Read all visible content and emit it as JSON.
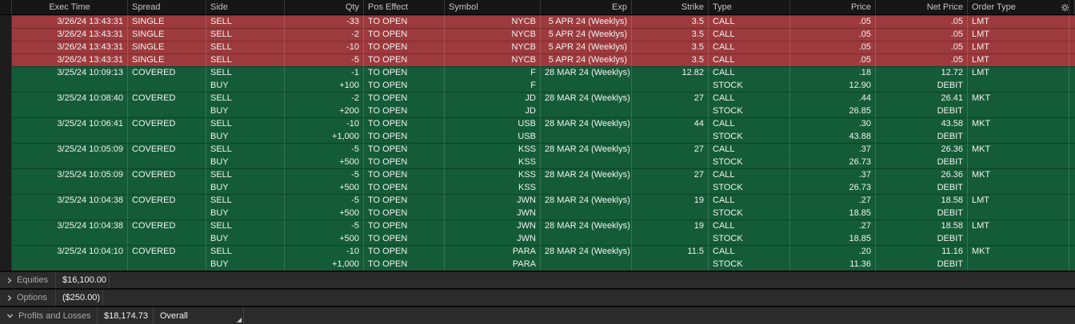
{
  "colors": {
    "sell_row": "#9d3a3d",
    "sell_row_divider": "#7a2b2e",
    "covered_row": "#145c37",
    "covered_row_divider": "#0b4226"
  },
  "icons": {
    "settings": "gear-icon",
    "collapsed": "chevron-right-icon",
    "expanded": "chevron-down-icon",
    "resize": "corner-resize-handle"
  },
  "table": {
    "columns": [
      {
        "key": "exec_time",
        "label": "Exec Time"
      },
      {
        "key": "spread",
        "label": "Spread"
      },
      {
        "key": "side",
        "label": "Side"
      },
      {
        "key": "qty",
        "label": "Qty"
      },
      {
        "key": "pos_effect",
        "label": "Pos Effect"
      },
      {
        "key": "symbol",
        "label": "Symbol"
      },
      {
        "key": "exp",
        "label": "Exp"
      },
      {
        "key": "strike",
        "label": "Strike"
      },
      {
        "key": "type",
        "label": "Type"
      },
      {
        "key": "price",
        "label": "Price"
      },
      {
        "key": "net_price",
        "label": "Net Price"
      },
      {
        "key": "order_type",
        "label": "Order Type"
      }
    ],
    "orders": [
      {
        "tone": "red",
        "lines": [
          {
            "exec_time": "3/26/24 13:43:31",
            "spread": "SINGLE",
            "side": "SELL",
            "qty": "-33",
            "pos_effect": "TO OPEN",
            "symbol": "NYCB",
            "exp": "5 APR 24 (Weeklys)",
            "strike": "3.5",
            "type": "CALL",
            "price": ".05",
            "net_price": ".05",
            "order_type": "LMT"
          }
        ]
      },
      {
        "tone": "red",
        "lines": [
          {
            "exec_time": "3/26/24 13:43:31",
            "spread": "SINGLE",
            "side": "SELL",
            "qty": "-2",
            "pos_effect": "TO OPEN",
            "symbol": "NYCB",
            "exp": "5 APR 24 (Weeklys)",
            "strike": "3.5",
            "type": "CALL",
            "price": ".05",
            "net_price": ".05",
            "order_type": "LMT"
          }
        ]
      },
      {
        "tone": "red",
        "lines": [
          {
            "exec_time": "3/26/24 13:43:31",
            "spread": "SINGLE",
            "side": "SELL",
            "qty": "-10",
            "pos_effect": "TO OPEN",
            "symbol": "NYCB",
            "exp": "5 APR 24 (Weeklys)",
            "strike": "3.5",
            "type": "CALL",
            "price": ".05",
            "net_price": ".05",
            "order_type": "LMT"
          }
        ]
      },
      {
        "tone": "red",
        "lines": [
          {
            "exec_time": "3/26/24 13:43:31",
            "spread": "SINGLE",
            "side": "SELL",
            "qty": "-5",
            "pos_effect": "TO OPEN",
            "symbol": "NYCB",
            "exp": "5 APR 24 (Weeklys)",
            "strike": "3.5",
            "type": "CALL",
            "price": ".05",
            "net_price": ".05",
            "order_type": "LMT"
          }
        ]
      },
      {
        "tone": "green",
        "lines": [
          {
            "exec_time": "3/25/24 10:09:13",
            "spread": "COVERED",
            "side": "SELL",
            "qty": "-1",
            "pos_effect": "TO OPEN",
            "symbol": "F",
            "exp": "28 MAR 24 (Weeklys)",
            "strike": "12.82",
            "type": "CALL",
            "price": ".18",
            "net_price": "12.72",
            "order_type": "LMT"
          },
          {
            "exec_time": "",
            "spread": "",
            "side": "BUY",
            "qty": "+100",
            "pos_effect": "TO OPEN",
            "symbol": "F",
            "exp": "",
            "strike": "",
            "type": "STOCK",
            "price": "12.90",
            "net_price": "DEBIT",
            "order_type": ""
          }
        ]
      },
      {
        "tone": "green",
        "lines": [
          {
            "exec_time": "3/25/24 10:08:40",
            "spread": "COVERED",
            "side": "SELL",
            "qty": "-2",
            "pos_effect": "TO OPEN",
            "symbol": "JD",
            "exp": "28 MAR 24 (Weeklys)",
            "strike": "27",
            "type": "CALL",
            "price": ".44",
            "net_price": "26.41",
            "order_type": "MKT"
          },
          {
            "exec_time": "",
            "spread": "",
            "side": "BUY",
            "qty": "+200",
            "pos_effect": "TO OPEN",
            "symbol": "JD",
            "exp": "",
            "strike": "",
            "type": "STOCK",
            "price": "26.85",
            "net_price": "DEBIT",
            "order_type": ""
          }
        ]
      },
      {
        "tone": "green",
        "lines": [
          {
            "exec_time": "3/25/24 10:06:41",
            "spread": "COVERED",
            "side": "SELL",
            "qty": "-10",
            "pos_effect": "TO OPEN",
            "symbol": "USB",
            "exp": "28 MAR 24 (Weeklys)",
            "strike": "44",
            "type": "CALL",
            "price": ".30",
            "net_price": "43.58",
            "order_type": "MKT"
          },
          {
            "exec_time": "",
            "spread": "",
            "side": "BUY",
            "qty": "+1,000",
            "pos_effect": "TO OPEN",
            "symbol": "USB",
            "exp": "",
            "strike": "",
            "type": "STOCK",
            "price": "43.88",
            "net_price": "DEBIT",
            "order_type": ""
          }
        ]
      },
      {
        "tone": "green",
        "lines": [
          {
            "exec_time": "3/25/24 10:05:09",
            "spread": "COVERED",
            "side": "SELL",
            "qty": "-5",
            "pos_effect": "TO OPEN",
            "symbol": "KSS",
            "exp": "28 MAR 24 (Weeklys)",
            "strike": "27",
            "type": "CALL",
            "price": ".37",
            "net_price": "26.36",
            "order_type": "MKT"
          },
          {
            "exec_time": "",
            "spread": "",
            "side": "BUY",
            "qty": "+500",
            "pos_effect": "TO OPEN",
            "symbol": "KSS",
            "exp": "",
            "strike": "",
            "type": "STOCK",
            "price": "26.73",
            "net_price": "DEBIT",
            "order_type": ""
          }
        ]
      },
      {
        "tone": "green",
        "lines": [
          {
            "exec_time": "3/25/24 10:05:09",
            "spread": "COVERED",
            "side": "SELL",
            "qty": "-5",
            "pos_effect": "TO OPEN",
            "symbol": "KSS",
            "exp": "28 MAR 24 (Weeklys)",
            "strike": "27",
            "type": "CALL",
            "price": ".37",
            "net_price": "26.36",
            "order_type": "MKT"
          },
          {
            "exec_time": "",
            "spread": "",
            "side": "BUY",
            "qty": "+500",
            "pos_effect": "TO OPEN",
            "symbol": "KSS",
            "exp": "",
            "strike": "",
            "type": "STOCK",
            "price": "26.73",
            "net_price": "DEBIT",
            "order_type": ""
          }
        ]
      },
      {
        "tone": "green",
        "lines": [
          {
            "exec_time": "3/25/24 10:04:38",
            "spread": "COVERED",
            "side": "SELL",
            "qty": "-5",
            "pos_effect": "TO OPEN",
            "symbol": "JWN",
            "exp": "28 MAR 24 (Weeklys)",
            "strike": "19",
            "type": "CALL",
            "price": ".27",
            "net_price": "18.58",
            "order_type": "LMT"
          },
          {
            "exec_time": "",
            "spread": "",
            "side": "BUY",
            "qty": "+500",
            "pos_effect": "TO OPEN",
            "symbol": "JWN",
            "exp": "",
            "strike": "",
            "type": "STOCK",
            "price": "18.85",
            "net_price": "DEBIT",
            "order_type": ""
          }
        ]
      },
      {
        "tone": "green",
        "lines": [
          {
            "exec_time": "3/25/24 10:04:38",
            "spread": "COVERED",
            "side": "SELL",
            "qty": "-5",
            "pos_effect": "TO OPEN",
            "symbol": "JWN",
            "exp": "28 MAR 24 (Weeklys)",
            "strike": "19",
            "type": "CALL",
            "price": ".27",
            "net_price": "18.58",
            "order_type": "LMT"
          },
          {
            "exec_time": "",
            "spread": "",
            "side": "BUY",
            "qty": "+500",
            "pos_effect": "TO OPEN",
            "symbol": "JWN",
            "exp": "",
            "strike": "",
            "type": "STOCK",
            "price": "18.85",
            "net_price": "DEBIT",
            "order_type": ""
          }
        ]
      },
      {
        "tone": "green",
        "lines": [
          {
            "exec_time": "3/25/24 10:04:10",
            "spread": "COVERED",
            "side": "SELL",
            "qty": "-10",
            "pos_effect": "TO OPEN",
            "symbol": "PARA",
            "exp": "28 MAR 24 (Weeklys)",
            "strike": "11.5",
            "type": "CALL",
            "price": ".20",
            "net_price": "11.16",
            "order_type": "MKT"
          },
          {
            "exec_time": "",
            "spread": "",
            "side": "BUY",
            "qty": "+1,000",
            "pos_effect": "TO OPEN",
            "symbol": "PARA",
            "exp": "",
            "strike": "",
            "type": "STOCK",
            "price": "11.36",
            "net_price": "DEBIT",
            "order_type": ""
          }
        ]
      }
    ]
  },
  "footer": {
    "sections": [
      {
        "label": "Equities",
        "value": "$16,100.00",
        "expanded": false
      },
      {
        "label": "Options",
        "value": "($250.00)",
        "expanded": false
      },
      {
        "label": "Profits and Losses",
        "value": "$18,174.73",
        "scope": "Overall",
        "expanded": true
      }
    ]
  }
}
